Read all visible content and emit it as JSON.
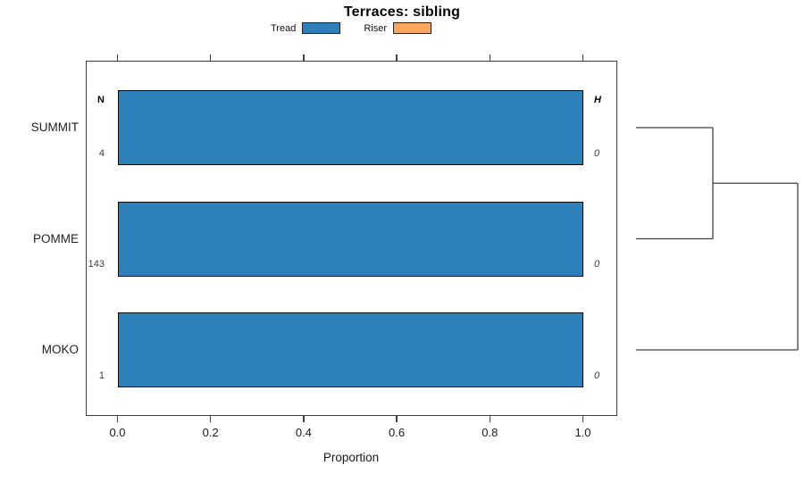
{
  "chart_data": {
    "type": "bar",
    "orientation": "horizontal",
    "stacked": true,
    "title": "Terraces: sibling",
    "xlabel": "Proportion",
    "xlim": [
      0.0,
      1.0
    ],
    "xticks": [
      0.0,
      0.2,
      0.4,
      0.6,
      0.8,
      1.0
    ],
    "xtick_labels": [
      "0.0",
      "0.2",
      "0.4",
      "0.6",
      "0.8",
      "1.0"
    ],
    "categories": [
      "SUMMIT",
      "POMME",
      "MOKO"
    ],
    "series": [
      {
        "name": "Tread",
        "color": "#2E80B8",
        "values": [
          1.0,
          1.0,
          1.0
        ]
      },
      {
        "name": "Riser",
        "color": "#F9A65E",
        "values": [
          0.0,
          0.0,
          0.0
        ]
      }
    ],
    "left_column": {
      "header": "N",
      "values": [
        "4",
        "143",
        "1"
      ]
    },
    "right_column": {
      "header": "H",
      "values": [
        "0",
        "0",
        "0"
      ]
    },
    "legend_position": "top",
    "grid": false,
    "dendrogram": {
      "position": "right",
      "leaf_order": [
        "SUMMIT",
        "POMME",
        "MOKO"
      ],
      "merges": [
        {
          "join": [
            0,
            1
          ],
          "relative_height": 0.475
        },
        {
          "join": [
            "prev",
            2
          ],
          "relative_height": 1.0
        }
      ]
    }
  }
}
